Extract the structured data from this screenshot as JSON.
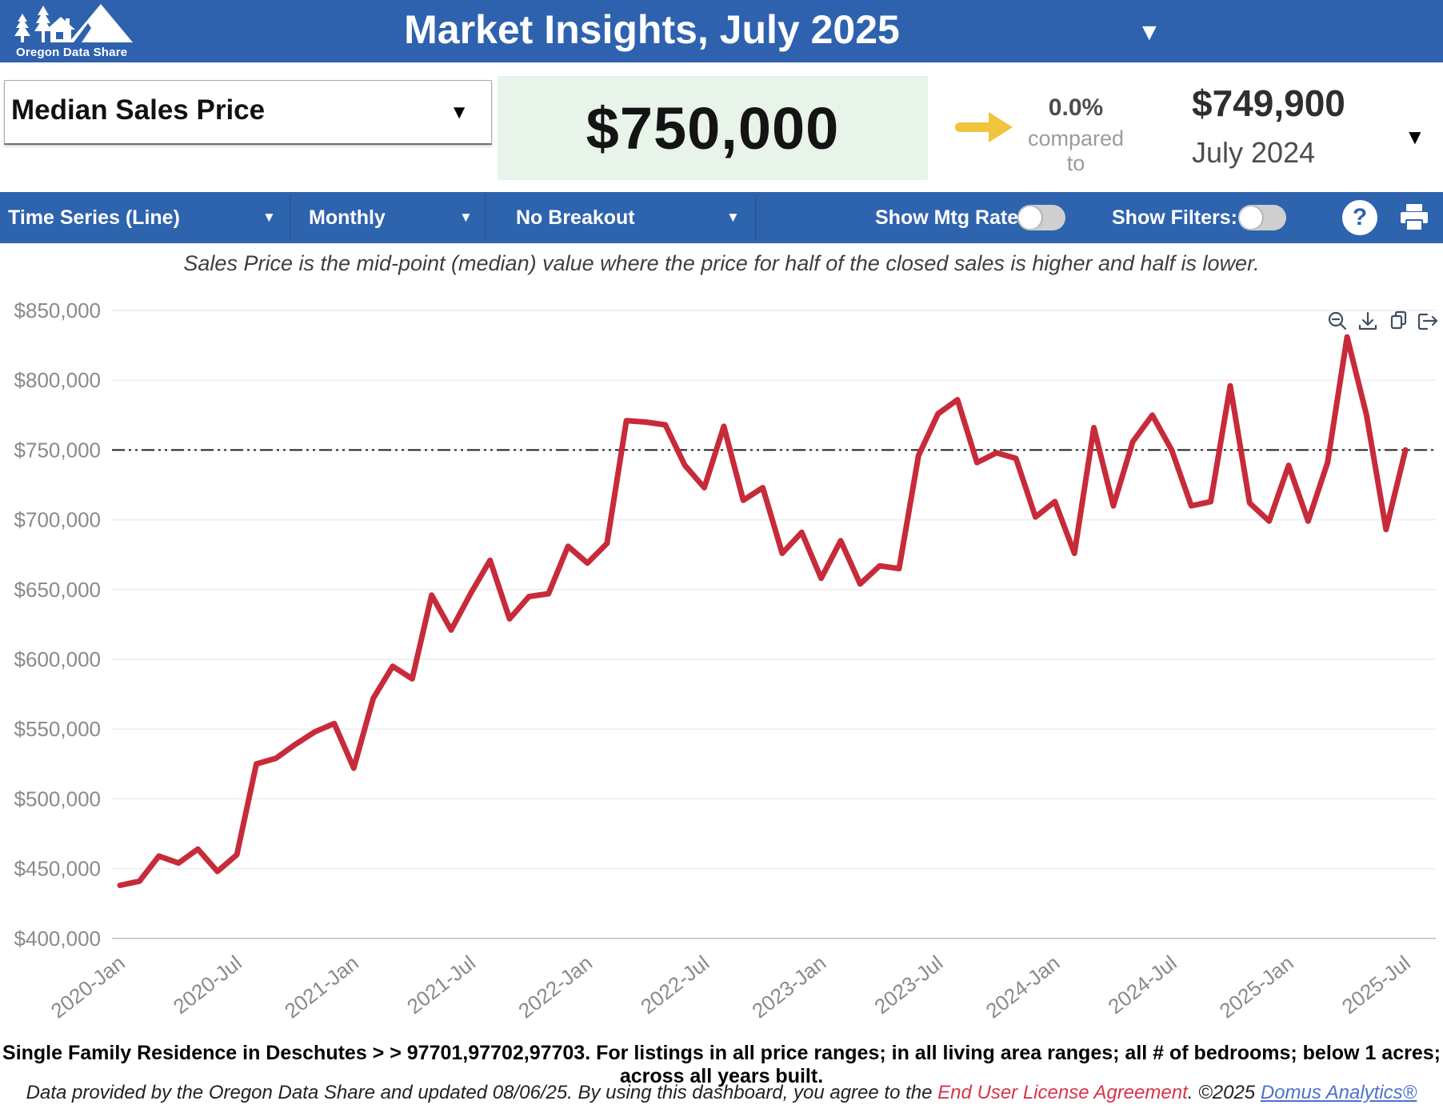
{
  "header": {
    "logo_text": "Oregon Data Share",
    "title": "Market Insights, July 2025"
  },
  "metric": {
    "selector_label": "Median Sales Price",
    "current_value": "$750,000",
    "change_pct": "0.0%",
    "compared_to_label": "compared to",
    "prior_value": "$749,900",
    "prior_period": "July 2024"
  },
  "toolbar": {
    "chart_type_label": "Time Series (Line)",
    "frequency_label": "Monthly",
    "breakout_label": "No Breakout",
    "mtg_rate_label": "Show Mtg Rate:",
    "filters_label": "Show Filters:",
    "mtg_rate_state": "off",
    "filters_state": "off",
    "help_label": "?"
  },
  "subtitle": "Sales Price is the mid-point (median) value where the price for half of the closed sales is higher and half is lower.",
  "chart_tools": {
    "icons": [
      "zoom-out-icon",
      "download-icon",
      "copy-icon",
      "export-icon"
    ]
  },
  "chart_data": {
    "type": "line",
    "series_name": "Median Sales Price",
    "line_color": "#c72b3a",
    "ref_line": 750000,
    "ylim": [
      400000,
      850000
    ],
    "grid": "horizontal-only",
    "legend": "none",
    "yticks": [
      {
        "label": "$850,000",
        "value": 850000
      },
      {
        "label": "$800,000",
        "value": 800000
      },
      {
        "label": "$750,000",
        "value": 750000
      },
      {
        "label": "$700,000",
        "value": 700000
      },
      {
        "label": "$650,000",
        "value": 650000
      },
      {
        "label": "$600,000",
        "value": 600000
      },
      {
        "label": "$550,000",
        "value": 550000
      },
      {
        "label": "$500,000",
        "value": 500000
      },
      {
        "label": "$450,000",
        "value": 450000
      },
      {
        "label": "$400,000",
        "value": 400000
      }
    ],
    "xtick_labels": [
      "2020-Jan",
      "2020-Jul",
      "2021-Jan",
      "2021-Jul",
      "2022-Jan",
      "2022-Jul",
      "2023-Jan",
      "2023-Jul",
      "2024-Jan",
      "2024-Jul",
      "2025-Jan",
      "2025-Jul"
    ],
    "x": [
      "2020-Jan",
      "2020-Feb",
      "2020-Mar",
      "2020-Apr",
      "2020-May",
      "2020-Jun",
      "2020-Jul",
      "2020-Aug",
      "2020-Sep",
      "2020-Oct",
      "2020-Nov",
      "2020-Dec",
      "2021-Jan",
      "2021-Feb",
      "2021-Mar",
      "2021-Apr",
      "2021-May",
      "2021-Jun",
      "2021-Jul",
      "2021-Aug",
      "2021-Sep",
      "2021-Oct",
      "2021-Nov",
      "2021-Dec",
      "2022-Jan",
      "2022-Feb",
      "2022-Mar",
      "2022-Apr",
      "2022-May",
      "2022-Jun",
      "2022-Jul",
      "2022-Aug",
      "2022-Sep",
      "2022-Oct",
      "2022-Nov",
      "2022-Dec",
      "2023-Jan",
      "2023-Feb",
      "2023-Mar",
      "2023-Apr",
      "2023-May",
      "2023-Jun",
      "2023-Jul",
      "2023-Aug",
      "2023-Sep",
      "2023-Oct",
      "2023-Nov",
      "2023-Dec",
      "2024-Jan",
      "2024-Feb",
      "2024-Mar",
      "2024-Apr",
      "2024-May",
      "2024-Jun",
      "2024-Jul",
      "2024-Aug",
      "2024-Sep",
      "2024-Oct",
      "2024-Nov",
      "2024-Dec",
      "2025-Jan",
      "2025-Feb",
      "2025-Mar",
      "2025-Apr",
      "2025-May",
      "2025-Jun",
      "2025-Jul"
    ],
    "values": [
      438000,
      441000,
      459000,
      454000,
      464000,
      448000,
      460000,
      525000,
      529000,
      539000,
      548000,
      554000,
      522000,
      572000,
      595000,
      586000,
      646000,
      621000,
      647000,
      671000,
      629000,
      645000,
      647000,
      681000,
      669000,
      683000,
      771000,
      770000,
      768000,
      739000,
      723000,
      767000,
      714000,
      723000,
      676000,
      691000,
      658000,
      685000,
      654000,
      667000,
      665000,
      746000,
      776000,
      786000,
      741000,
      748000,
      744000,
      702000,
      713000,
      676000,
      766000,
      710000,
      756000,
      775000,
      749900,
      710000,
      713000,
      796000,
      712000,
      699000,
      739000,
      699000,
      741000,
      831000,
      775000,
      693000,
      750000
    ]
  },
  "footer": {
    "criteria": "Single Family Residence in Deschutes > > 97701,97702,97703. For listings in all price ranges; in all living area ranges; all # of bedrooms; below 1 acres; across all years built.",
    "attribution": {
      "part1": "Data provided by the Oregon Data Share and updated 08/06/25.  By using this dashboard, you agree to the ",
      "eula": "End User License Agreement",
      "part2": ".  ©2025 ",
      "domus": "Domus Analytics®"
    }
  },
  "colors": {
    "header_blue": "#2e62ae",
    "toolbar_blue": "#2e63ae",
    "line_red": "#c72b3a",
    "value_box_green": "#e8f3ea",
    "arrow_yellow": "#f0c43c",
    "eula_red": "#d93448",
    "domus_blue": "#4a72cf",
    "icon_slate": "#3f4d63"
  }
}
